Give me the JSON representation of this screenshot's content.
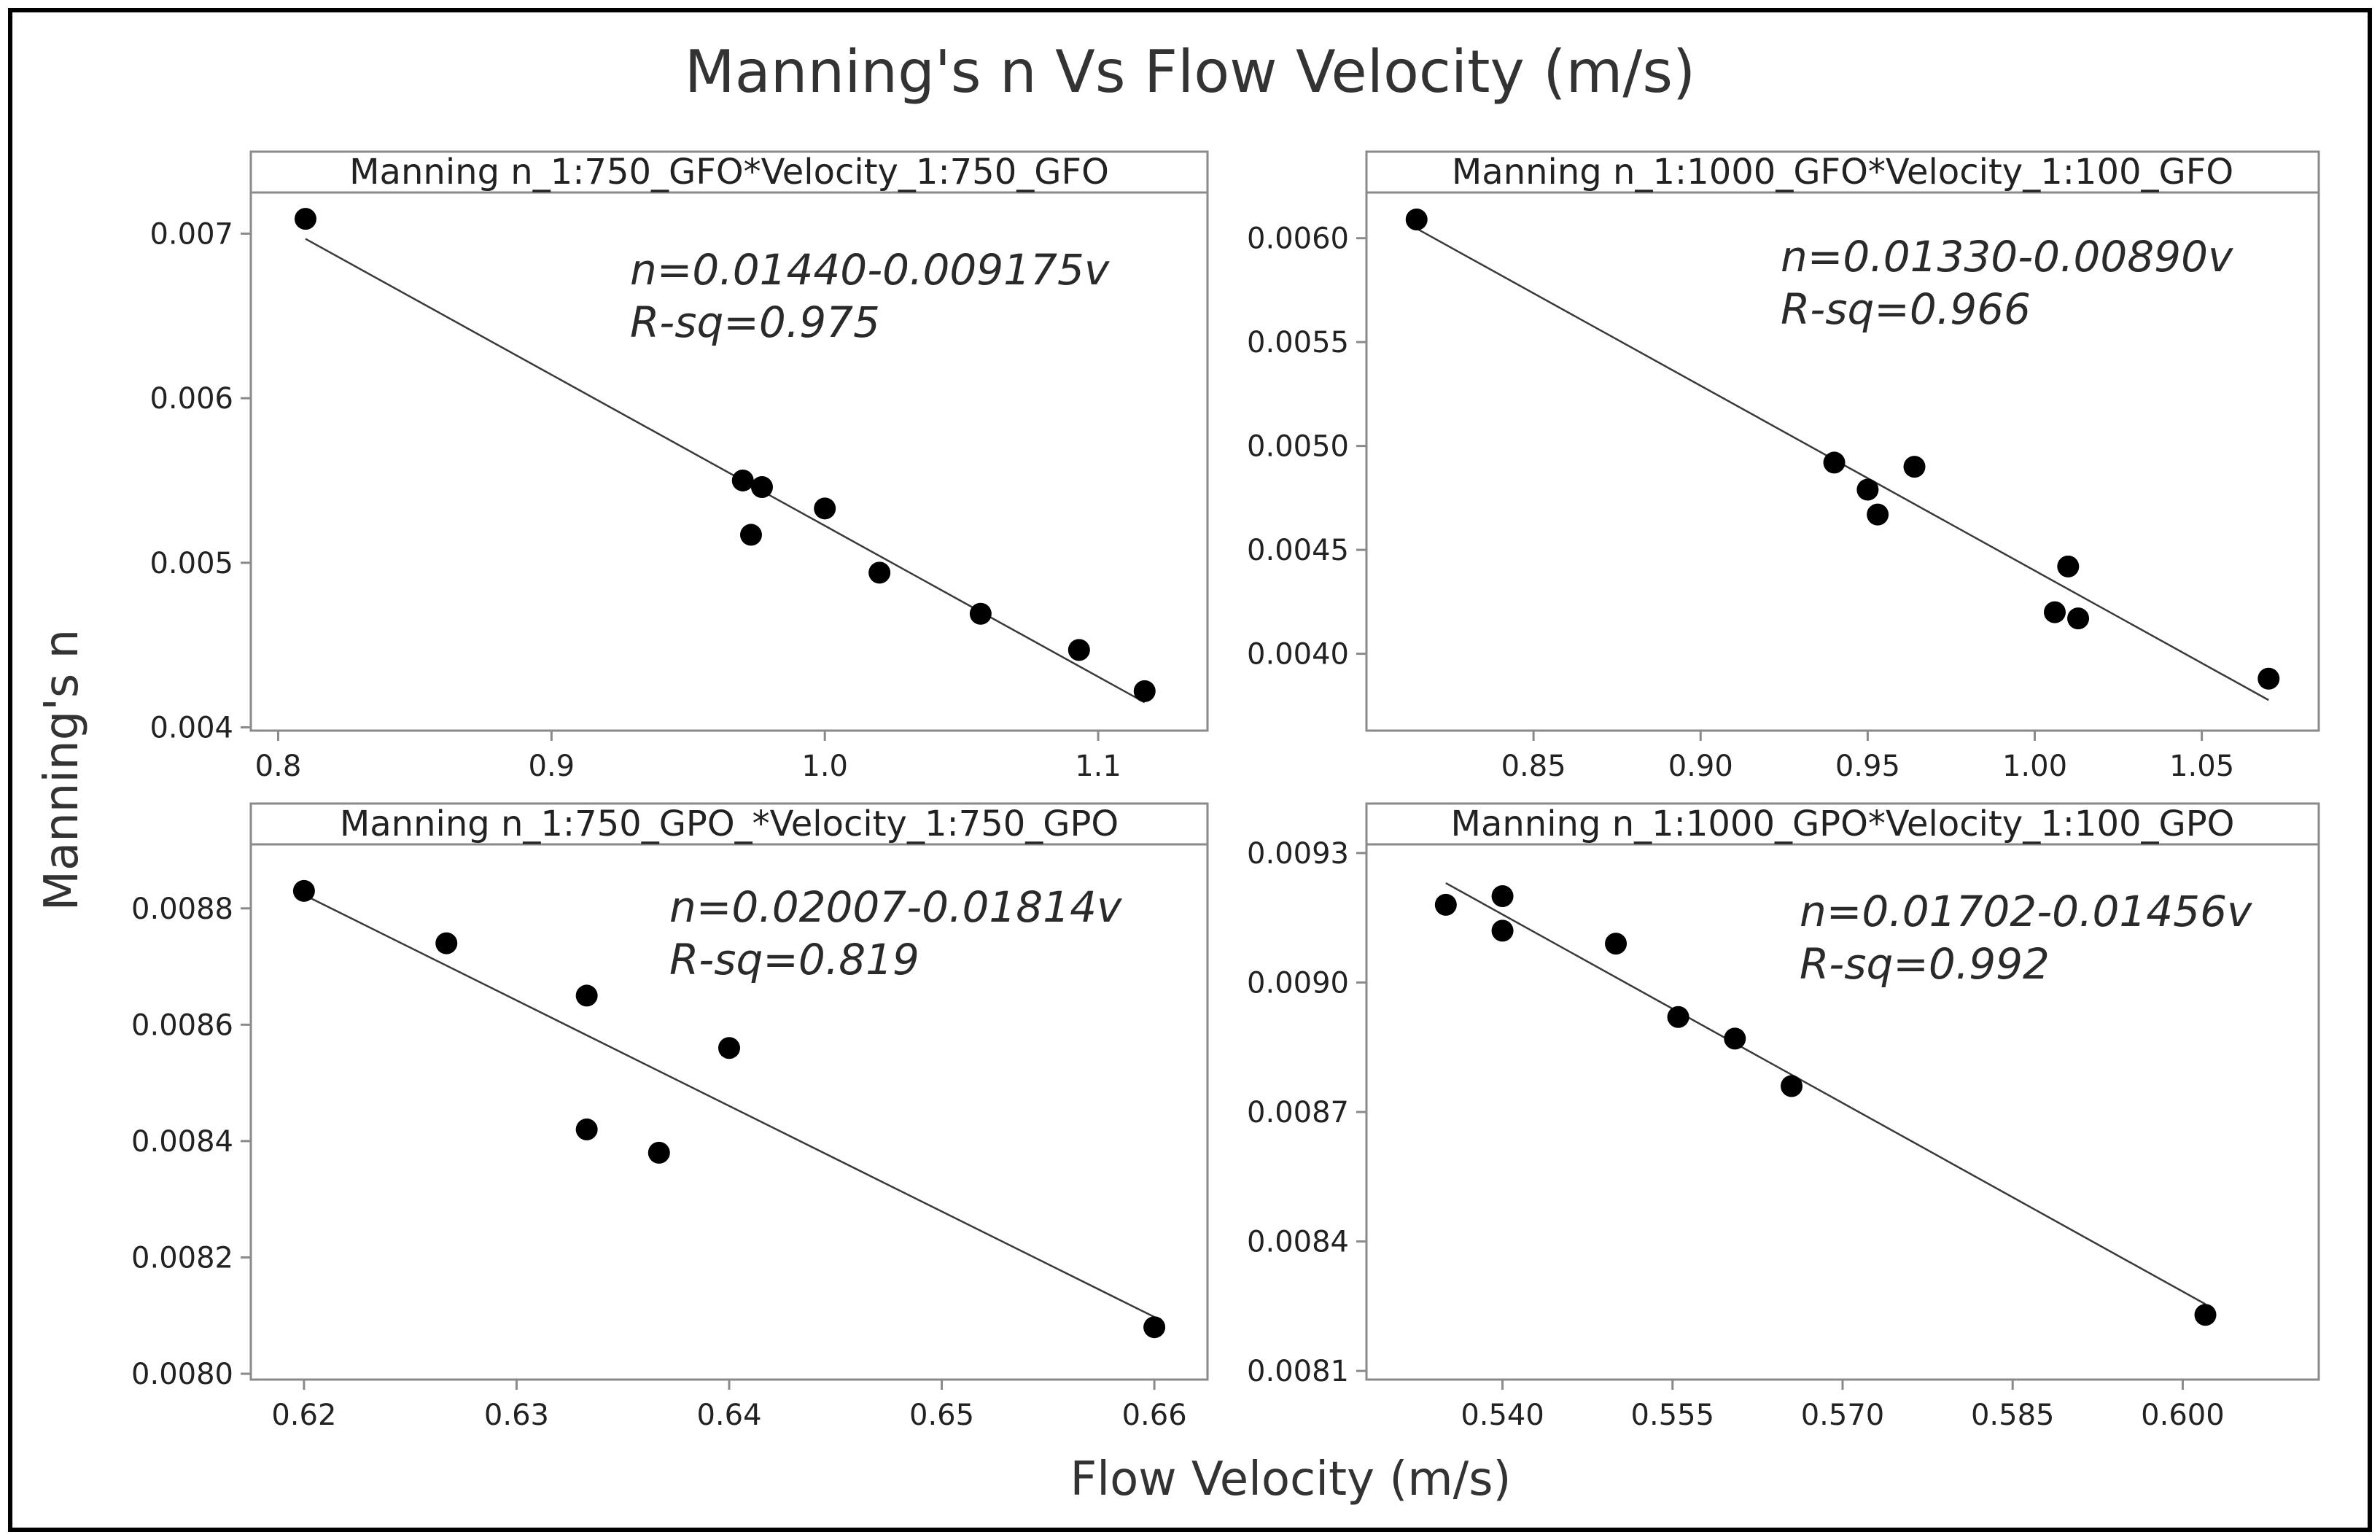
{
  "chart_data": {
    "type": "scatter",
    "title": "Manning's n Vs Flow Velocity (m/s)",
    "xlabel": "Flow Velocity (m/s)",
    "ylabel": "Manning's n",
    "panels": [
      {
        "strip": "Manning n_1:750_GFO*Velocity_1:750_GFO",
        "equation": "n=0.01440-0.009175v",
        "rsq": "R-sq=0.975",
        "xlim": [
          0.79,
          1.14
        ],
        "ylim": [
          0.00398,
          0.00725
        ],
        "xticks": [
          0.8,
          0.9,
          1.0,
          1.1
        ],
        "xtick_labels": [
          "0.8",
          "0.9",
          "1.0",
          "1.1"
        ],
        "yticks": [
          0.004,
          0.005,
          0.006,
          0.007
        ],
        "ytick_labels": [
          "0.004",
          "0.005",
          "0.006",
          "0.007"
        ],
        "fit": [
          0.0144,
          -0.009175
        ],
        "fit_range": [
          0.81,
          1.117
        ],
        "points": [
          [
            0.81,
            0.00709
          ],
          [
            0.97,
            0.0055
          ],
          [
            0.977,
            0.00546
          ],
          [
            0.973,
            0.00517
          ],
          [
            1.0,
            0.00533
          ],
          [
            1.02,
            0.00494
          ],
          [
            1.057,
            0.00469
          ],
          [
            1.093,
            0.00447
          ],
          [
            1.117,
            0.00422
          ]
        ]
      },
      {
        "strip": "Manning n_1:1000_GFO*Velocity_1:100_GFO",
        "equation": "n=0.01330-0.00890v",
        "rsq": "R-sq=0.966",
        "xlim": [
          0.8,
          1.085
        ],
        "ylim": [
          0.00363,
          0.00622
        ],
        "xticks": [
          0.85,
          0.9,
          0.95,
          1.0,
          1.05
        ],
        "xtick_labels": [
          "0.85",
          "0.90",
          "0.95",
          "1.00",
          "1.05"
        ],
        "yticks": [
          0.004,
          0.0045,
          0.005,
          0.0055,
          0.006
        ],
        "ytick_labels": [
          "0.0040",
          "0.0045",
          "0.0050",
          "0.0055",
          "0.0060"
        ],
        "fit": [
          0.0133,
          -0.0089
        ],
        "fit_range": [
          0.815,
          1.07
        ],
        "points": [
          [
            0.815,
            0.00609
          ],
          [
            0.94,
            0.00492
          ],
          [
            0.95,
            0.00479
          ],
          [
            0.953,
            0.00467
          ],
          [
            0.964,
            0.0049
          ],
          [
            1.006,
            0.0042
          ],
          [
            1.01,
            0.00442
          ],
          [
            1.013,
            0.00417
          ],
          [
            1.07,
            0.00388
          ]
        ]
      },
      {
        "strip": "Manning n_1:750_GPO_*Velocity_1:750_GPO",
        "equation": "n=0.02007-0.01814v",
        "rsq": "R-sq=0.819",
        "xlim": [
          0.6175,
          0.6625
        ],
        "ylim": [
          0.00799,
          0.00891
        ],
        "xticks": [
          0.62,
          0.63,
          0.64,
          0.65,
          0.66
        ],
        "xtick_labels": [
          "0.62",
          "0.63",
          "0.64",
          "0.65",
          "0.66"
        ],
        "yticks": [
          0.008,
          0.0082,
          0.0084,
          0.0086,
          0.0088
        ],
        "ytick_labels": [
          "0.0080",
          "0.0082",
          "0.0084",
          "0.0086",
          "0.0088"
        ],
        "fit": [
          0.02007,
          -0.01814
        ],
        "fit_range": [
          0.62,
          0.66
        ],
        "points": [
          [
            0.62,
            0.00883
          ],
          [
            0.6267,
            0.00874
          ],
          [
            0.6333,
            0.00865
          ],
          [
            0.6333,
            0.00842
          ],
          [
            0.6367,
            0.00838
          ],
          [
            0.64,
            0.00856
          ],
          [
            0.66,
            0.00808
          ]
        ]
      },
      {
        "strip": "Manning n_1:1000_GPO*Velocity_1:100_GPO",
        "equation": "n=0.01702-0.01456v",
        "rsq": "R-sq=0.992",
        "xlim": [
          0.528,
          0.612
        ],
        "ylim": [
          0.00808,
          0.00932
        ],
        "xticks": [
          0.54,
          0.555,
          0.57,
          0.585,
          0.6
        ],
        "xtick_labels": [
          "0.540",
          "0.555",
          "0.570",
          "0.585",
          "0.600"
        ],
        "yticks": [
          0.0081,
          0.0084,
          0.0087,
          0.009,
          0.0093
        ],
        "ytick_labels": [
          "0.0081",
          "0.0084",
          "0.0087",
          "0.0090",
          "0.0093"
        ],
        "fit": [
          0.01702,
          -0.01456
        ],
        "fit_range": [
          0.535,
          0.602
        ],
        "points": [
          [
            0.535,
            0.00918
          ],
          [
            0.54,
            0.0092
          ],
          [
            0.54,
            0.00912
          ],
          [
            0.55,
            0.00909
          ],
          [
            0.5555,
            0.00892
          ],
          [
            0.5605,
            0.00887
          ],
          [
            0.5655,
            0.00876
          ],
          [
            0.602,
            0.00823
          ]
        ]
      }
    ]
  }
}
